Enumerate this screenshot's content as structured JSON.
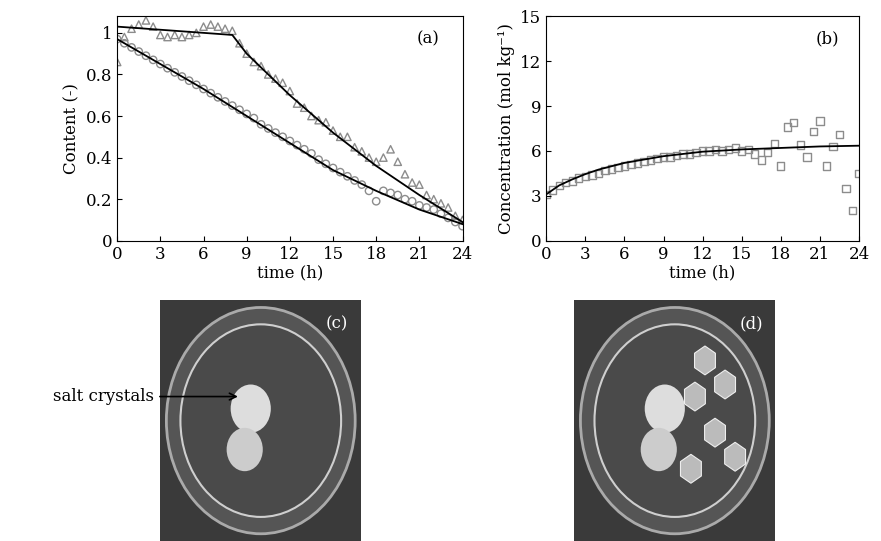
{
  "chart_data": [
    {
      "type": "scatter",
      "xlabel": "time (h)",
      "ylabel": "Content (-)",
      "annotations": [
        "(a)"
      ],
      "xlim": [
        0,
        24
      ],
      "xticks": [
        0,
        3,
        6,
        9,
        12,
        15,
        18,
        21,
        24
      ],
      "ylim": [
        0,
        1.08
      ],
      "yticks": [
        0,
        0.2,
        0.4,
        0.6,
        0.8,
        1
      ],
      "series": [
        {
          "type": "scatter",
          "marker": "triangle",
          "color": "#8c8c8c",
          "x": [
            0,
            0.5,
            1,
            1.5,
            2,
            2.5,
            3,
            3.5,
            4,
            4.5,
            5,
            5.5,
            6,
            6.5,
            7,
            7.5,
            8,
            8.5,
            9,
            9.5,
            10,
            10.5,
            11,
            11.5,
            12,
            12.5,
            13,
            13.5,
            14,
            14.5,
            15,
            15.5,
            16,
            16.5,
            17,
            17.5,
            18,
            18.5,
            19,
            19.5,
            20,
            20.5,
            21,
            21.5,
            22,
            22.5,
            23,
            23.5,
            24
          ],
          "values": [
            0.86,
            0.98,
            1.02,
            1.04,
            1.06,
            1.03,
            0.99,
            0.98,
            0.99,
            0.98,
            0.99,
            1.0,
            1.03,
            1.04,
            1.03,
            1.02,
            1.01,
            0.95,
            0.9,
            0.86,
            0.84,
            0.8,
            0.78,
            0.76,
            0.72,
            0.66,
            0.64,
            0.6,
            0.58,
            0.57,
            0.53,
            0.5,
            0.5,
            0.45,
            0.43,
            0.4,
            0.38,
            0.4,
            0.44,
            0.38,
            0.32,
            0.28,
            0.27,
            0.22,
            0.2,
            0.18,
            0.16,
            0.12,
            0.1
          ]
        },
        {
          "type": "scatter",
          "marker": "circle",
          "color": "#8c8c8c",
          "x": [
            0,
            0.5,
            1,
            1.5,
            2,
            2.5,
            3,
            3.5,
            4,
            4.5,
            5,
            5.5,
            6,
            6.5,
            7,
            7.5,
            8,
            8.5,
            9,
            9.5,
            10,
            10.5,
            11,
            11.5,
            12,
            12.5,
            13,
            13.5,
            14,
            14.5,
            15,
            15.5,
            16,
            16.5,
            17,
            17.5,
            18,
            18.5,
            19,
            19.5,
            20,
            20.5,
            21,
            21.5,
            22,
            22.5,
            23,
            23.5,
            24
          ],
          "values": [
            0.97,
            0.95,
            0.93,
            0.91,
            0.89,
            0.87,
            0.85,
            0.83,
            0.81,
            0.79,
            0.77,
            0.75,
            0.73,
            0.71,
            0.69,
            0.67,
            0.65,
            0.63,
            0.61,
            0.59,
            0.56,
            0.54,
            0.52,
            0.5,
            0.48,
            0.46,
            0.44,
            0.42,
            0.39,
            0.37,
            0.35,
            0.33,
            0.31,
            0.29,
            0.27,
            0.24,
            0.19,
            0.24,
            0.23,
            0.22,
            0.2,
            0.19,
            0.17,
            0.16,
            0.15,
            0.13,
            0.11,
            0.09,
            0.07
          ]
        },
        {
          "type": "line",
          "line_style": "solid",
          "color": "#000000",
          "x": [
            0,
            8,
            9,
            12,
            15,
            18,
            21,
            24
          ],
          "values": [
            1.03,
            0.99,
            0.9,
            0.7,
            0.52,
            0.36,
            0.22,
            0.09
          ]
        },
        {
          "type": "line",
          "line_style": "solid",
          "color": "#000000",
          "x": [
            0,
            3,
            6,
            9,
            12,
            15,
            18,
            21,
            24
          ],
          "values": [
            0.97,
            0.85,
            0.73,
            0.6,
            0.47,
            0.34,
            0.24,
            0.15,
            0.08
          ]
        }
      ]
    },
    {
      "type": "scatter",
      "xlabel": "time (h)",
      "ylabel": "Concentration (mol kg⁻¹)",
      "annotations": [
        "(b)"
      ],
      "xlim": [
        0,
        24
      ],
      "xticks": [
        0,
        3,
        6,
        9,
        12,
        15,
        18,
        21,
        24
      ],
      "ylim": [
        0,
        15
      ],
      "yticks": [
        0,
        3,
        6,
        9,
        12,
        15
      ],
      "series": [
        {
          "type": "scatter",
          "marker": "square",
          "color": "#8c8c8c",
          "x": [
            0,
            0.5,
            1,
            1.5,
            2,
            2.5,
            3,
            3.5,
            4,
            4.5,
            5,
            5.5,
            6,
            6.5,
            7,
            7.5,
            8,
            8.5,
            9,
            9.5,
            10,
            10.5,
            11,
            11.5,
            12,
            12.5,
            13,
            13.5,
            14,
            14.5,
            15,
            15.5,
            16,
            16.5,
            17,
            17.5,
            18,
            18.5,
            19,
            19.5,
            20,
            20.5,
            21,
            21.5,
            22,
            22.5,
            23,
            23.5,
            24
          ],
          "values": [
            3.1,
            3.4,
            3.7,
            3.9,
            4.0,
            4.2,
            4.3,
            4.4,
            4.5,
            4.7,
            4.8,
            4.9,
            5.0,
            5.1,
            5.2,
            5.3,
            5.4,
            5.5,
            5.6,
            5.6,
            5.7,
            5.8,
            5.8,
            5.9,
            6.0,
            6.0,
            6.1,
            6.0,
            6.1,
            6.2,
            6.0,
            6.1,
            5.8,
            5.4,
            5.9,
            6.5,
            5.0,
            7.6,
            7.9,
            6.4,
            5.6,
            7.3,
            8.0,
            5.0,
            6.3,
            7.1,
            3.5,
            2.0,
            4.5
          ]
        },
        {
          "type": "line",
          "line_style": "solid",
          "color": "#000000",
          "x": [
            0,
            1,
            2,
            3,
            4,
            6,
            9,
            12,
            15,
            18,
            21,
            24
          ],
          "values": [
            3.1,
            3.7,
            4.1,
            4.45,
            4.75,
            5.2,
            5.65,
            5.95,
            6.1,
            6.2,
            6.3,
            6.35
          ]
        }
      ]
    }
  ],
  "photos": [
    {
      "label": "(c)",
      "annotation": "salt crystals"
    },
    {
      "label": "(d)"
    }
  ]
}
